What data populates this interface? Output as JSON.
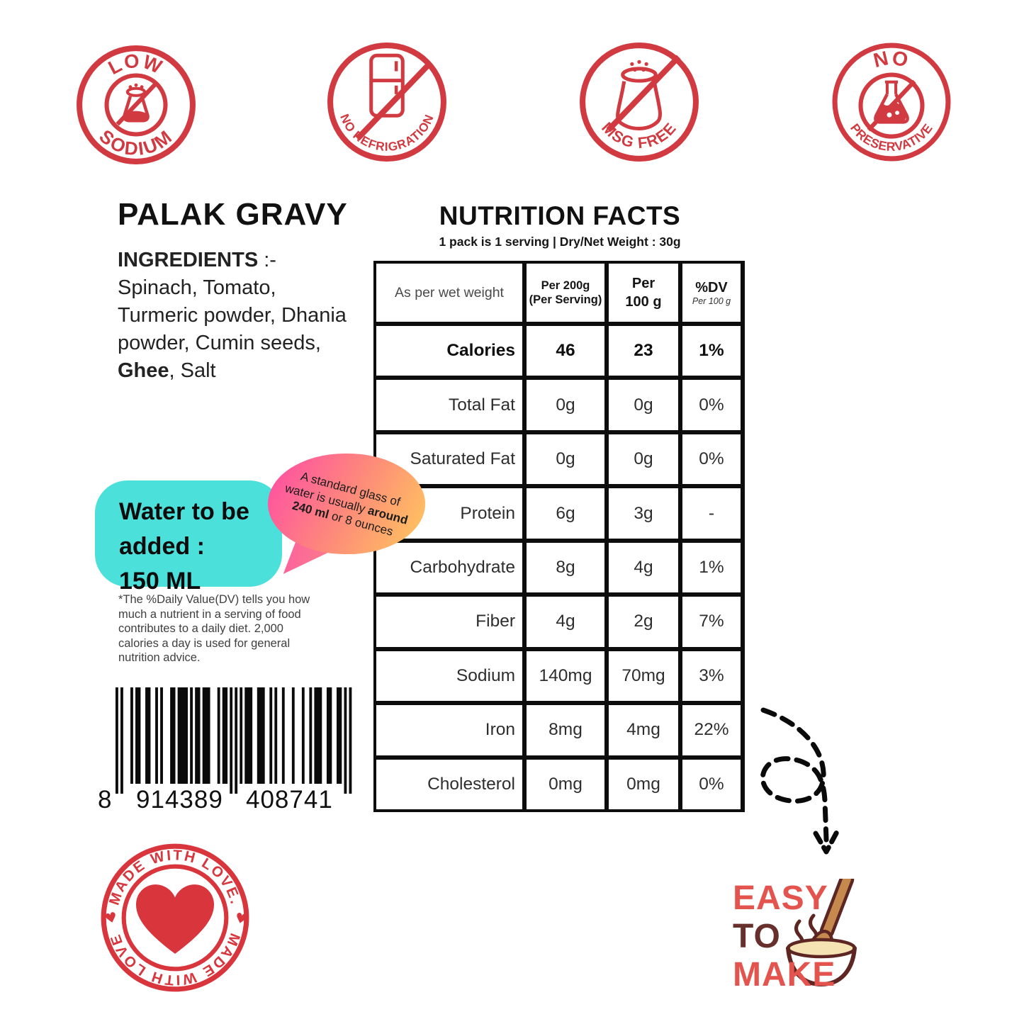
{
  "badges": [
    {
      "top_text": "LOW",
      "bottom_text": "SODIUM",
      "icon": "no-salt-shaker"
    },
    {
      "top_text": "",
      "bottom_text": "NO REFRIGRATION",
      "icon": "no-fridge"
    },
    {
      "top_text": "",
      "bottom_text": "MSG FREE",
      "icon": "no-salt-shaker"
    },
    {
      "top_text": "NO",
      "bottom_text": "PRESERVATIVE",
      "icon": "no-flask"
    }
  ],
  "product": {
    "title": "PALAK GRAVY",
    "ingredients_label": "INGREDIENTS",
    "ingredients_sep": " :-",
    "ingredients_pre": "Spinach, Tomato, Turmeric powder, Dhania powder, Cumin seeds, ",
    "ingredients_bold": "Ghee",
    "ingredients_post": ", Salt"
  },
  "nutrition": {
    "title": "NUTRITION FACTS",
    "subtitle": "1 pack is 1 serving | Dry/Net  Weight : 30g",
    "col0": "As per wet weight",
    "col1a": "Per 200g",
    "col1b": "(Per Serving)",
    "col2a": "Per",
    "col2b": "100 g",
    "col3a": "%DV",
    "col3b": "Per 100 g",
    "rows": [
      {
        "label": "Calories",
        "per200": "46",
        "per100": "23",
        "dv": "1%"
      },
      {
        "label": "Total Fat",
        "per200": "0g",
        "per100": "0g",
        "dv": "0%"
      },
      {
        "label": "Saturated Fat",
        "per200": "0g",
        "per100": "0g",
        "dv": "0%"
      },
      {
        "label": "Protein",
        "per200": "6g",
        "per100": "3g",
        "dv": "-"
      },
      {
        "label": "Carbohydrate",
        "per200": "8g",
        "per100": "4g",
        "dv": "1%"
      },
      {
        "label": "Fiber",
        "per200": "4g",
        "per100": "2g",
        "dv": "7%"
      },
      {
        "label": "Sodium",
        "per200": "140mg",
        "per100": "70mg",
        "dv": "3%"
      },
      {
        "label": "Iron",
        "per200": "8mg",
        "per100": "4mg",
        "dv": "22%"
      },
      {
        "label": "Cholesterol",
        "per200": "0mg",
        "per100": "0mg",
        "dv": "0%"
      }
    ]
  },
  "water_note": {
    "line1": "Water to be",
    "line2": "added :",
    "line3": "150 ML"
  },
  "glass_note": {
    "t1": "A standard glass of water is usually ",
    "b1": "around",
    "t2": " ",
    "b2": "240 ml",
    "t3": " or 8 ounces"
  },
  "footnote": "*The %Daily Value(DV) tells you how much a nutrient in a serving of food contributes to a daily diet. 2,000 calories a day is used for general nutrition advice.",
  "barcode": {
    "lead": "8",
    "group1": "914389",
    "group2": "408741"
  },
  "love_stamp": {
    "top": "MADE WITH LOVE.",
    "bottom": "MADE WITH LOVE"
  },
  "easy_logo": {
    "word1": "EASY",
    "word2": "TO",
    "word3": "MAKE"
  },
  "colors": {
    "stamp_red": "#d03a40",
    "love_red": "#d8353d",
    "bubble_cyan": "#4ce0db",
    "bubble_pink": "#ff4fa3",
    "bubble_orange": "#ffc45f",
    "easy_red": "#e4544e",
    "easy_brown": "#67302c",
    "bowl_outline": "#5e2623",
    "bowl_fill": "#f6e3b4",
    "spoon_brown": "#c6894d"
  }
}
